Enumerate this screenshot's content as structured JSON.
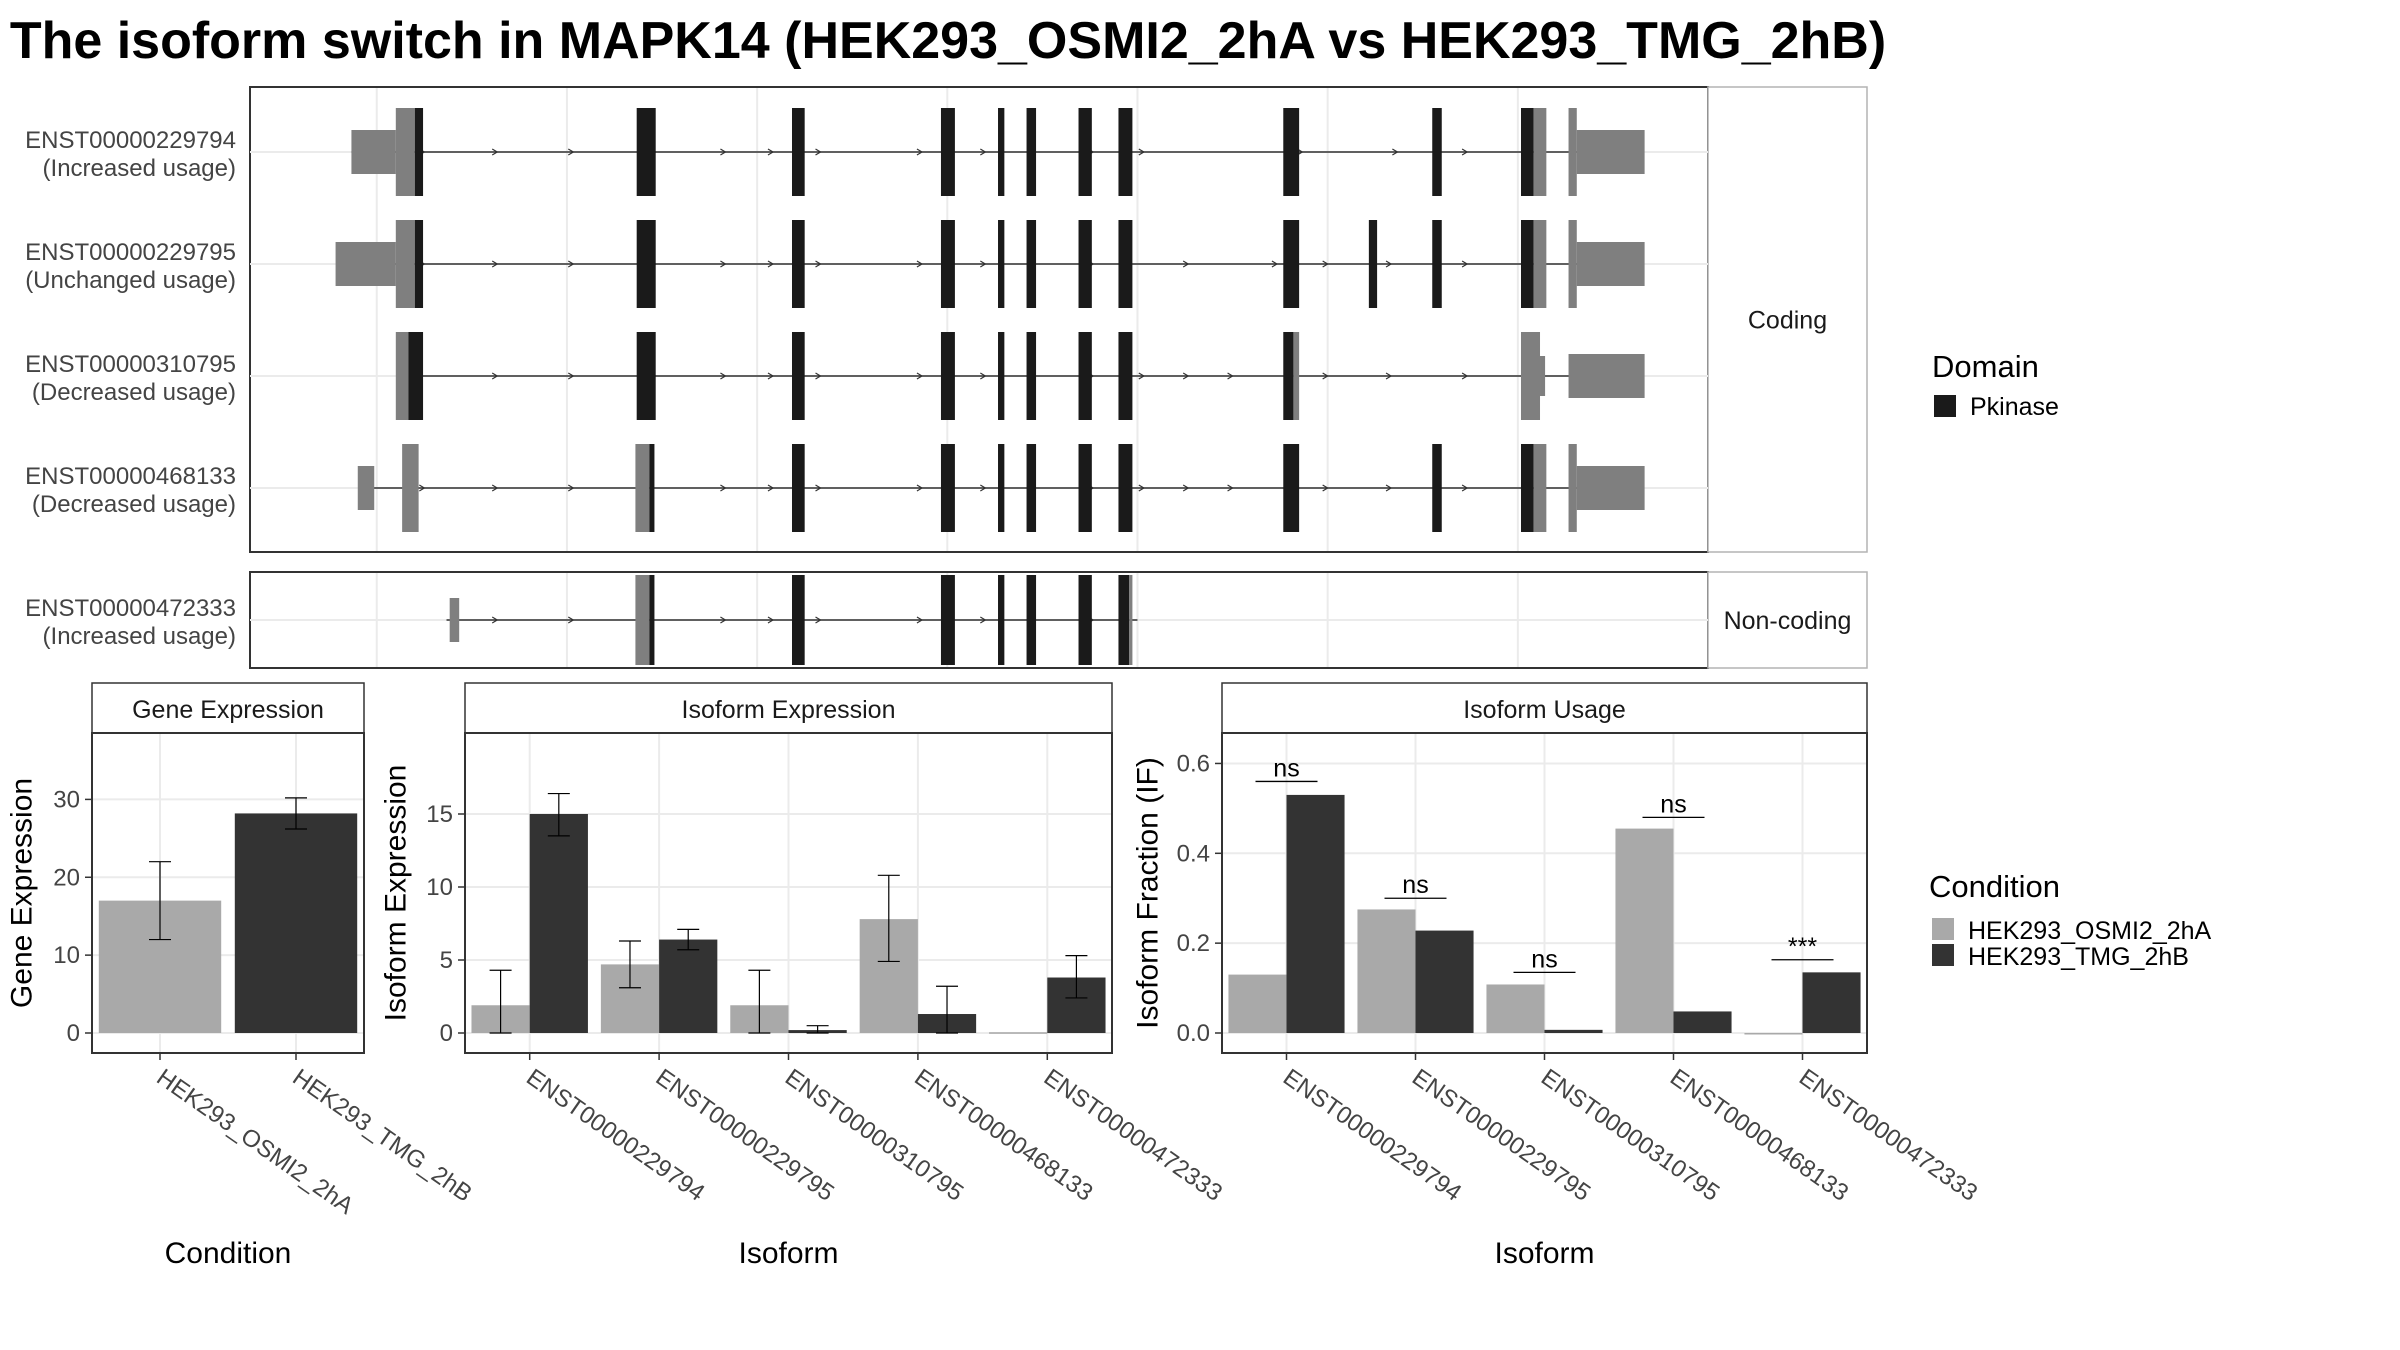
{
  "title": "The isoform switch in MAPK14 (HEK293_OSMI2_2hA vs HEK293_TMG_2hB)",
  "colors": {
    "utr": "#7f7f7f",
    "cds": "#1a1a1a",
    "cond_a": "#a9a9a9",
    "cond_b": "#333333",
    "grid": "#ebebeb",
    "strip_border": "#b3b3b3"
  },
  "transcript_panels": [
    {
      "label": "Coding",
      "transcripts": [
        0,
        1,
        2,
        3
      ]
    },
    {
      "label": "Non-coding",
      "transcripts": [
        4
      ]
    }
  ],
  "transcripts": [
    {
      "id": "ENST00000229794",
      "usage": "(Increased usage)",
      "coding": true,
      "line": [
        16,
        212
      ],
      "strands": [
        27.5,
        39,
        51,
        64,
        75,
        82.5,
        90,
        106,
        116,
        133,
        141,
        166,
        181,
        192
      ],
      "exons": [
        {
          "start": 16,
          "end": 23,
          "type": "utr"
        },
        {
          "start": 23,
          "end": 26,
          "type": "utr-cds"
        },
        {
          "start": 26,
          "end": 27.3,
          "type": "cds"
        },
        {
          "start": 61,
          "end": 64,
          "type": "cds"
        },
        {
          "start": 85.5,
          "end": 87.5,
          "type": "cds"
        },
        {
          "start": 109,
          "end": 111.2,
          "type": "cds"
        },
        {
          "start": 118,
          "end": 119,
          "type": "cds"
        },
        {
          "start": 122.5,
          "end": 124,
          "type": "cds"
        },
        {
          "start": 130.7,
          "end": 132.8,
          "type": "cds"
        },
        {
          "start": 137,
          "end": 139.2,
          "type": "cds"
        },
        {
          "start": 163,
          "end": 165.5,
          "type": "cds"
        },
        {
          "start": 186.5,
          "end": 188,
          "type": "cds"
        },
        {
          "start": 200.5,
          "end": 202.5,
          "type": "cds"
        },
        {
          "start": 202.5,
          "end": 204.5,
          "type": "utr-cds"
        },
        {
          "start": 208,
          "end": 209.3,
          "type": "utr-cds"
        },
        {
          "start": 209.3,
          "end": 220,
          "type": "utr"
        }
      ]
    },
    {
      "id": "ENST00000229795",
      "usage": "(Unchanged usage)",
      "coding": true,
      "line": [
        14,
        212
      ],
      "strands": [
        27.5,
        39,
        51,
        64,
        75,
        82.5,
        90,
        106,
        116,
        133,
        148,
        162,
        170,
        180,
        192
      ],
      "exons": [
        {
          "start": 13.5,
          "end": 23,
          "type": "utr"
        },
        {
          "start": 23,
          "end": 26,
          "type": "utr-cds"
        },
        {
          "start": 26,
          "end": 27.3,
          "type": "cds"
        },
        {
          "start": 61,
          "end": 64,
          "type": "cds"
        },
        {
          "start": 85.5,
          "end": 87.5,
          "type": "cds"
        },
        {
          "start": 109,
          "end": 111.2,
          "type": "cds"
        },
        {
          "start": 118,
          "end": 119,
          "type": "cds"
        },
        {
          "start": 122.5,
          "end": 124,
          "type": "cds"
        },
        {
          "start": 130.7,
          "end": 132.8,
          "type": "cds"
        },
        {
          "start": 137,
          "end": 139.2,
          "type": "cds"
        },
        {
          "start": 163,
          "end": 165.5,
          "type": "cds"
        },
        {
          "start": 176.5,
          "end": 177.8,
          "type": "cds"
        },
        {
          "start": 186.5,
          "end": 188,
          "type": "cds"
        },
        {
          "start": 200.5,
          "end": 202.5,
          "type": "cds"
        },
        {
          "start": 202.5,
          "end": 204.5,
          "type": "utr-cds"
        },
        {
          "start": 208,
          "end": 209.3,
          "type": "utr-cds"
        },
        {
          "start": 209.3,
          "end": 220,
          "type": "utr"
        }
      ]
    },
    {
      "id": "ENST00000310795",
      "usage": "(Decreased usage)",
      "coding": true,
      "line": [
        27,
        212
      ],
      "strands": [
        39,
        51,
        64,
        75,
        82.5,
        90,
        106,
        116,
        133,
        141,
        148,
        155,
        170,
        180,
        192
      ],
      "exons": [
        {
          "start": 23,
          "end": 25,
          "type": "utr-cds"
        },
        {
          "start": 25,
          "end": 27.3,
          "type": "cds"
        },
        {
          "start": 61,
          "end": 64,
          "type": "cds"
        },
        {
          "start": 85.5,
          "end": 87.5,
          "type": "cds"
        },
        {
          "start": 109,
          "end": 111.2,
          "type": "cds"
        },
        {
          "start": 118,
          "end": 119,
          "type": "cds"
        },
        {
          "start": 122.5,
          "end": 124,
          "type": "cds"
        },
        {
          "start": 130.7,
          "end": 132.8,
          "type": "cds"
        },
        {
          "start": 137,
          "end": 139.2,
          "type": "cds"
        },
        {
          "start": 163,
          "end": 164.6,
          "type": "cds"
        },
        {
          "start": 164.6,
          "end": 165.5,
          "type": "utr-cds"
        },
        {
          "start": 200.5,
          "end": 203.5,
          "type": "utr-cds"
        },
        {
          "start": 203.5,
          "end": 204.3,
          "type": "utr-cds-thin"
        },
        {
          "start": 208,
          "end": 220,
          "type": "utr"
        }
      ]
    },
    {
      "id": "ENST00000468133",
      "usage": "(Decreased usage)",
      "coding": true,
      "line": [
        18,
        212
      ],
      "strands": [
        27.5,
        39,
        51,
        75,
        82.5,
        90,
        106,
        116,
        133,
        141,
        148,
        155,
        170,
        180,
        192
      ],
      "exons": [
        {
          "start": 17,
          "end": 19.6,
          "type": "utr"
        },
        {
          "start": 24,
          "end": 26.6,
          "type": "utr-cds"
        },
        {
          "start": 60.8,
          "end": 63,
          "type": "utr-cds"
        },
        {
          "start": 63,
          "end": 63.8,
          "type": "cds"
        },
        {
          "start": 85.5,
          "end": 87.5,
          "type": "cds"
        },
        {
          "start": 109,
          "end": 111.2,
          "type": "cds"
        },
        {
          "start": 118,
          "end": 119,
          "type": "cds"
        },
        {
          "start": 122.5,
          "end": 124,
          "type": "cds"
        },
        {
          "start": 130.7,
          "end": 132.8,
          "type": "cds"
        },
        {
          "start": 137,
          "end": 139.2,
          "type": "cds"
        },
        {
          "start": 163,
          "end": 165.5,
          "type": "cds"
        },
        {
          "start": 186.5,
          "end": 188,
          "type": "cds"
        },
        {
          "start": 200.5,
          "end": 202.5,
          "type": "cds"
        },
        {
          "start": 202.5,
          "end": 204.5,
          "type": "utr-cds"
        },
        {
          "start": 208,
          "end": 209.3,
          "type": "utr-cds"
        },
        {
          "start": 209.3,
          "end": 220,
          "type": "utr"
        }
      ]
    },
    {
      "id": "ENST00000472333",
      "usage": "(Increased usage)",
      "coding": false,
      "line": [
        31,
        140
      ],
      "strands": [
        39,
        51,
        75,
        82.5,
        90,
        106,
        116,
        133
      ],
      "exons": [
        {
          "start": 31.5,
          "end": 33,
          "type": "utr-cds"
        },
        {
          "start": 60.8,
          "end": 63,
          "type": "utr-cds"
        },
        {
          "start": 63,
          "end": 63.8,
          "type": "cds"
        },
        {
          "start": 85.5,
          "end": 87.5,
          "type": "cds"
        },
        {
          "start": 109,
          "end": 111.2,
          "type": "cds"
        },
        {
          "start": 118,
          "end": 119,
          "type": "cds"
        },
        {
          "start": 122.5,
          "end": 124,
          "type": "cds"
        },
        {
          "start": 130.7,
          "end": 132.8,
          "type": "cds"
        },
        {
          "start": 137,
          "end": 138.7,
          "type": "cds"
        },
        {
          "start": 138.7,
          "end": 139.2,
          "type": "utr-cds"
        }
      ]
    }
  ],
  "legend_domain": {
    "title": "Domain",
    "items": [
      {
        "label": "Pkinase",
        "color": "#1a1a1a"
      }
    ]
  },
  "legend_condition": {
    "title": "Condition",
    "items": [
      {
        "label": "HEK293_OSMI2_2hA",
        "color": "#a9a9a9"
      },
      {
        "label": "HEK293_TMG_2hB",
        "color": "#333333"
      }
    ]
  },
  "chart_data": [
    {
      "type": "bar",
      "panel_title": "Gene Expression",
      "xlabel": "Condition",
      "ylabel": "Gene Expression",
      "ylim": [
        0,
        37.5
      ],
      "yticks": [
        0,
        10,
        20,
        30
      ],
      "categories": [
        "HEK293_OSMI2_2hA",
        "HEK293_TMG_2hB"
      ],
      "values": [
        17,
        28.2
      ],
      "errors": [
        [
          12,
          22
        ],
        [
          26.2,
          30.2
        ]
      ],
      "bar_colors": [
        "#a9a9a9",
        "#333333"
      ]
    },
    {
      "type": "bar",
      "panel_title": "Isoform Expression",
      "xlabel": "Isoform",
      "ylabel": "Isoform Expression",
      "ylim": [
        0,
        20
      ],
      "yticks": [
        0,
        5,
        10,
        15
      ],
      "categories": [
        "ENST00000229794",
        "ENST00000229795",
        "ENST00000310795",
        "ENST00000468133",
        "ENST00000472333"
      ],
      "series": [
        {
          "name": "HEK293_OSMI2_2hA",
          "values": [
            1.9,
            4.7,
            1.9,
            7.8,
            0.05
          ],
          "errors": [
            [
              0,
              4.3
            ],
            [
              3.1,
              6.3
            ],
            [
              0,
              4.3
            ],
            [
              4.9,
              10.8
            ],
            null
          ]
        },
        {
          "name": "HEK293_TMG_2hB",
          "values": [
            15,
            6.4,
            0.2,
            1.3,
            3.8
          ],
          "errors": [
            [
              13.5,
              16.4
            ],
            [
              5.7,
              7.1
            ],
            [
              0,
              0.5
            ],
            [
              0,
              3.2
            ],
            [
              2.4,
              5.3
            ]
          ]
        }
      ]
    },
    {
      "type": "bar",
      "panel_title": "Isoform Usage",
      "xlabel": "Isoform",
      "ylabel": "Isoform Fraction (IF)",
      "ylim": [
        0,
        0.65
      ],
      "yticks": [
        "0.0",
        "0.2",
        "0.4",
        "0.6"
      ],
      "categories": [
        "ENST00000229794",
        "ENST00000229795",
        "ENST00000310795",
        "ENST00000468133",
        "ENST00000472333"
      ],
      "series": [
        {
          "name": "HEK293_OSMI2_2hA",
          "values": [
            0.13,
            0.275,
            0.108,
            0.455,
            0
          ]
        },
        {
          "name": "HEK293_TMG_2hB",
          "values": [
            0.53,
            0.228,
            0.007,
            0.048,
            0.135
          ]
        }
      ],
      "annotations": [
        {
          "text": "ns",
          "y": 0.56
        },
        {
          "text": "ns",
          "y": 0.3
        },
        {
          "text": "ns",
          "y": 0.135
        },
        {
          "text": "ns",
          "y": 0.48
        },
        {
          "text": "***",
          "y": 0.163
        }
      ]
    }
  ]
}
